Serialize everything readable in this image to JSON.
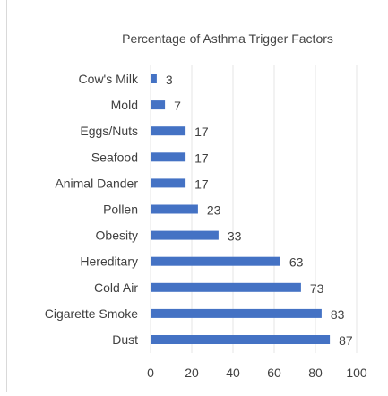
{
  "chart_data": {
    "type": "bar",
    "orientation": "horizontal",
    "title": "Percentage of Asthma Trigger Factors",
    "categories": [
      "Cow's Milk",
      "Mold",
      "Eggs/Nuts",
      "Seafood",
      "Animal Dander",
      "Pollen",
      "Obesity",
      "Hereditary",
      "Cold Air",
      "Cigarette Smoke",
      "Dust"
    ],
    "values": [
      3,
      7,
      17,
      17,
      17,
      23,
      33,
      63,
      73,
      83,
      87
    ],
    "xlim": [
      0,
      100
    ],
    "xticks": [
      0,
      20,
      40,
      60,
      80,
      100
    ],
    "xtick_labels": [
      "0",
      "20",
      "40",
      "60",
      "80",
      "100"
    ],
    "grid": "vertical",
    "legend": "none",
    "bar_color": "#4472c4",
    "data_labels": true
  }
}
